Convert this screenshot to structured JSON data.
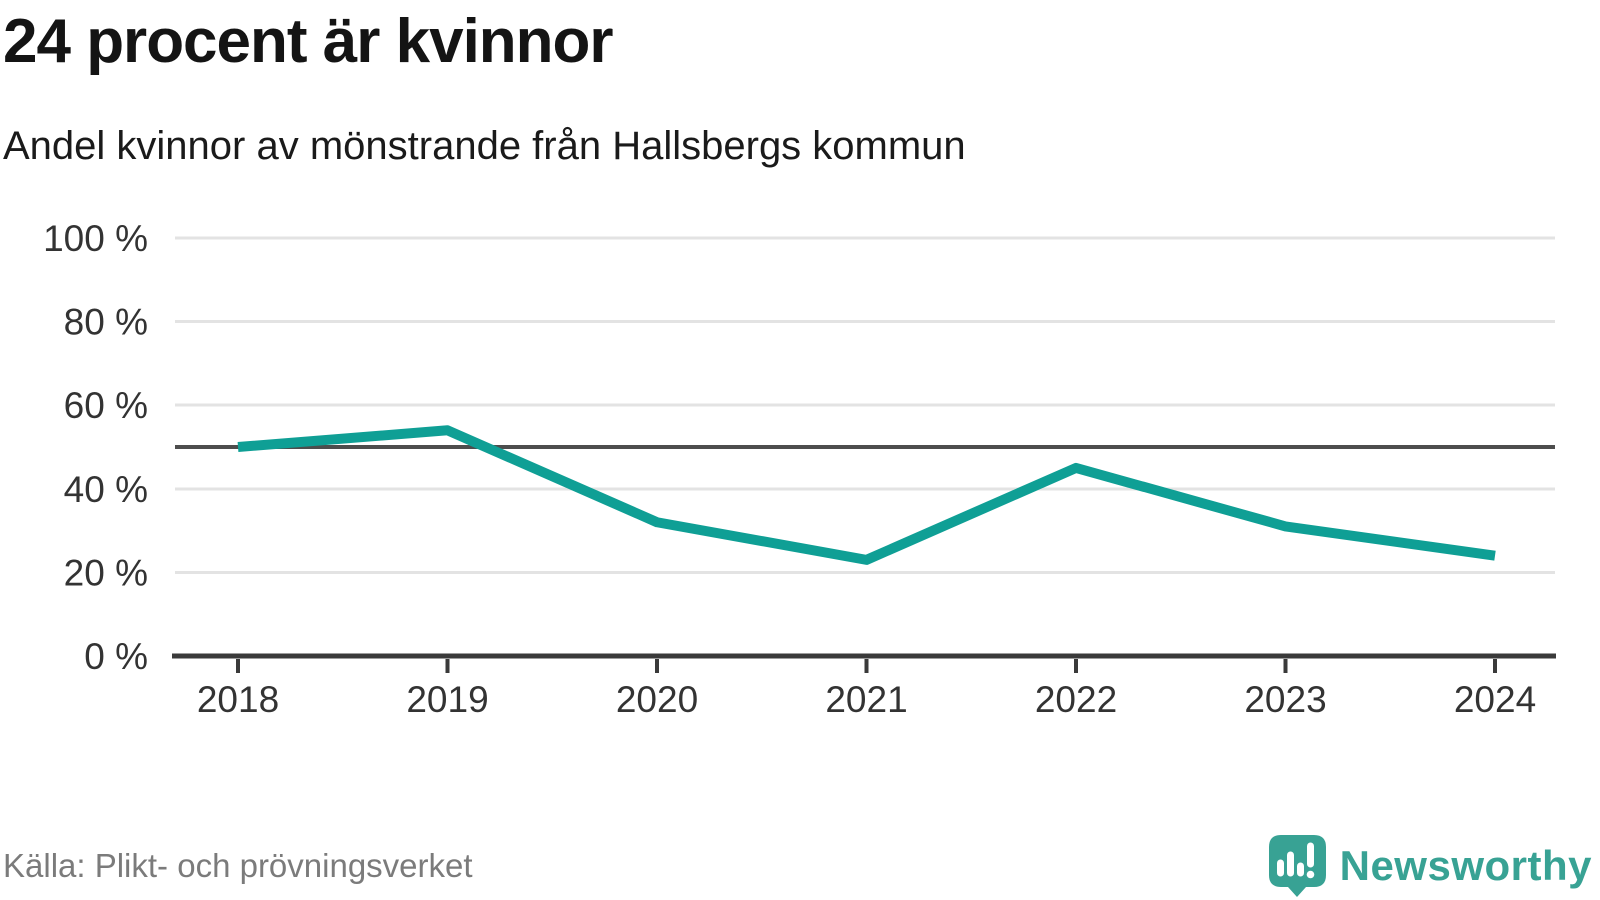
{
  "chart_data": {
    "type": "line",
    "title": "24 procent är kvinnor",
    "subtitle": "Andel kvinnor av mönstrande från Hallsbergs kommun",
    "x": [
      "2018",
      "2019",
      "2020",
      "2021",
      "2022",
      "2023",
      "2024"
    ],
    "series": [
      {
        "name": "Andel kvinnor av mönstrande",
        "values": [
          50,
          54,
          32,
          23,
          45,
          31,
          24
        ]
      }
    ],
    "unit": "%",
    "ylim": [
      0,
      100
    ],
    "yticks": [
      0,
      20,
      40,
      60,
      80,
      100
    ],
    "ytick_labels": [
      "0 %",
      "20 %",
      "40 %",
      "60 %",
      "80 %",
      "100 %"
    ],
    "reference_line": 50,
    "grid": true,
    "legend": "none",
    "xlabel": "",
    "ylabel": "",
    "source": "Källa: Plikt- och prövningsverket"
  },
  "footer": {
    "brand": "Newsworthy"
  },
  "colors": {
    "line": "#0f9f95",
    "grid": "#e3e3e3",
    "reference": "#4d4d4d",
    "axis": "#3a3a3a",
    "title_text": "#141414",
    "tick_text": "#333333",
    "source_text": "#7b7b7b",
    "logo": "#38a294"
  }
}
